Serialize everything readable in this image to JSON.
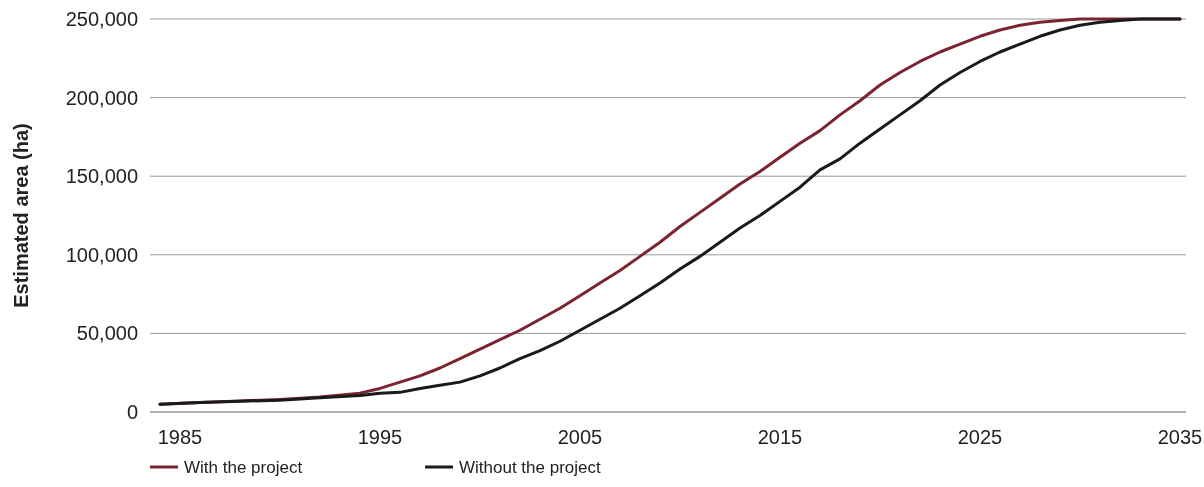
{
  "chart_data": {
    "type": "line",
    "ylabel": "Estimated area (ha)",
    "x": [
      1984,
      1986,
      1988,
      1990,
      1992,
      1994,
      1995,
      1996,
      1997,
      1998,
      1999,
      2000,
      2001,
      2002,
      2003,
      2004,
      2005,
      2006,
      2007,
      2008,
      2009,
      2010,
      2011,
      2012,
      2013,
      2014,
      2015,
      2016,
      2017,
      2018,
      2019,
      2020,
      2021,
      2022,
      2023,
      2024,
      2025,
      2026,
      2027,
      2028,
      2029,
      2030,
      2031,
      2032,
      2033,
      2034,
      2035
    ],
    "series": [
      {
        "name": "With the project",
        "color": "#7b2430",
        "values": [
          5000,
          6000,
          7000,
          8000,
          9500,
          12000,
          15000,
          19000,
          23000,
          28000,
          34000,
          40000,
          46000,
          52000,
          59000,
          66000,
          74000,
          82000,
          90000,
          99000,
          108000,
          118000,
          127000,
          136000,
          145000,
          153000,
          162000,
          171000,
          179000,
          189000,
          198000,
          208000,
          216000,
          223000,
          229000,
          234000,
          239000,
          243000,
          246000,
          248000,
          249000,
          250000,
          250000,
          250000,
          250000,
          250000,
          250000
        ]
      },
      {
        "name": "Without the project",
        "color": "#1a1a1a",
        "values": [
          5000,
          6000,
          6800,
          7500,
          9000,
          10500,
          12000,
          12500,
          15000,
          17000,
          19000,
          23000,
          28000,
          34000,
          39000,
          45000,
          52000,
          59000,
          66000,
          74000,
          82000,
          91000,
          99000,
          108000,
          117000,
          125000,
          134000,
          143000,
          154000,
          161000,
          171000,
          180000,
          189000,
          198000,
          208000,
          216000,
          223000,
          229000,
          234000,
          239000,
          243000,
          246000,
          248000,
          249000,
          250000,
          250000,
          250000
        ]
      }
    ],
    "xlim": [
      1983.5,
      2035.3
    ],
    "xticks": [
      1985,
      1995,
      2005,
      2015,
      2025,
      2035
    ],
    "ylim": [
      0,
      250000
    ],
    "yticks": [
      {
        "value": 0,
        "label": "0"
      },
      {
        "value": 50000,
        "label": "50,000"
      },
      {
        "value": 100000,
        "label": "100,000"
      },
      {
        "value": 150000,
        "label": "150,000"
      },
      {
        "value": 200000,
        "label": "200,000"
      },
      {
        "value": 250000,
        "label": "250,000"
      }
    ],
    "grid": "y",
    "legend": "bottom left",
    "marker": "none",
    "line_style": "solid"
  }
}
